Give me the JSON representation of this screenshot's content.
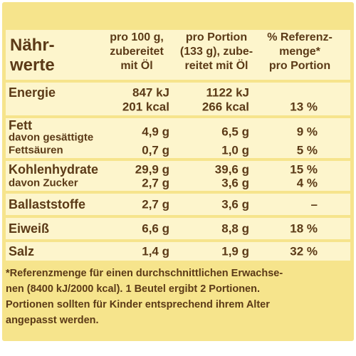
{
  "header": {
    "nutrients": [
      "Nähr-",
      "werte"
    ],
    "per_100g": [
      "pro 100 g,",
      "zubereitet",
      "mit Öl"
    ],
    "per_portion": [
      "pro Portion",
      "(133 g), zube-",
      "reitet mit Öl"
    ],
    "reference": [
      "% Referenz-",
      "menge*",
      "pro Portion"
    ]
  },
  "rows": [
    {
      "label": [
        "Energie"
      ],
      "per_100g": [
        "847 kJ",
        "201 kcal"
      ],
      "per_portion": [
        "1122 kJ",
        "266 kcal"
      ],
      "reference": [
        "13 %"
      ]
    },
    {
      "label": [
        "Fett",
        "davon gesättigte",
        "Fettsäuren"
      ],
      "per_100g": [
        "4,9 g",
        "0,7 g"
      ],
      "per_portion": [
        "6,5 g",
        "1,0 g"
      ],
      "reference": [
        "9 %",
        "5 %"
      ]
    },
    {
      "label": [
        "Kohlenhydrate",
        "davon Zucker"
      ],
      "per_100g": [
        "29,9 g",
        "2,7 g"
      ],
      "per_portion": [
        "39,6 g",
        "3,6 g"
      ],
      "reference": [
        "15 %",
        "4 %"
      ]
    },
    {
      "label": [
        "Ballaststoffe"
      ],
      "per_100g": [
        "2,7 g"
      ],
      "per_portion": [
        "3,6 g"
      ],
      "reference": [
        "–"
      ]
    },
    {
      "label": [
        "Eiweiß"
      ],
      "per_100g": [
        "6,6 g"
      ],
      "per_portion": [
        "8,8 g"
      ],
      "reference": [
        "18 %"
      ]
    },
    {
      "label": [
        "Salz"
      ],
      "per_100g": [
        "1,4 g"
      ],
      "per_portion": [
        "1,9 g"
      ],
      "reference": [
        "32 %"
      ]
    }
  ],
  "footnote": [
    "*Referenzmenge für einen durchschnittlichen Erwachse-",
    "nen (8400 kJ/2000 kcal). 1 Beutel ergibt 2 Portionen.",
    "Portionen sollten für Kinder entsprechend ihrem Alter",
    "angepasst werden."
  ]
}
